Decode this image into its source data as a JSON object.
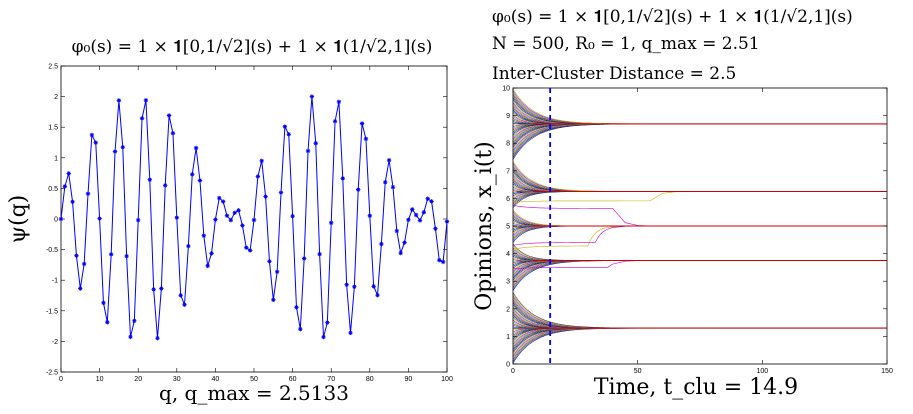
{
  "chart_data": [
    {
      "type": "line",
      "title": "φ₀(s) = 1 × 𝟏[0,1/√2](s) + 1 × 𝟏(1/√2,1](s)",
      "xlabel": "q, q_max = 2.5133",
      "ylabel": "ψ(q)",
      "xlim": [
        0,
        100
      ],
      "ylim": [
        -2.5,
        2.5
      ],
      "xticks": [
        "0",
        "10",
        "20",
        "30",
        "40",
        "50",
        "60",
        "70",
        "80",
        "90",
        "100"
      ],
      "yticks": [
        "2.5",
        "2",
        "1.5",
        "1",
        "0.5",
        "0",
        "-0.5",
        "-1",
        "-1.5",
        "-2",
        "-2.5"
      ],
      "grid": false,
      "color": "#0000ff",
      "marker": "star",
      "formula": {
        "carrier_cycles_per_unit": 0.14993,
        "envelope_cycles_per_unit": 0.01036,
        "amplitude": 2.0
      },
      "x_samples": "integers 0 to 100",
      "y_samples_note": "computed values, all 101 samples"
    },
    {
      "type": "line",
      "title_lines": [
        "φ₀(s) = 1 × 𝟏[0,1/√2](s) + 1 × 𝟏(1/√2,1](s)",
        "N = 500, R₀ = 1, q_max = 2.51",
        "Inter-Cluster Distance = 2.5"
      ],
      "xlabel": "Time, t_clu = 14.9",
      "ylabel": "Opinions, x_i(t)",
      "xlim": [
        0,
        150
      ],
      "ylim": [
        0,
        10
      ],
      "xticks": [
        "0",
        "50",
        "100",
        "150"
      ],
      "yticks": [
        "0",
        "1",
        "2",
        "3",
        "4",
        "5",
        "6",
        "7",
        "8",
        "9",
        "10"
      ],
      "grid": false,
      "n_agents": 500,
      "cluster_time": 14.9,
      "cluster_time_line": {
        "x": 14.9,
        "style": "dashed",
        "color": "#0000ff"
      },
      "clusters": [
        {
          "final_value": 1.3,
          "range": [
            0.0,
            2.6
          ]
        },
        {
          "final_value": 3.75,
          "range": [
            2.6,
            4.4
          ]
        },
        {
          "final_value": 5.0,
          "range": [
            4.4,
            5.6
          ]
        },
        {
          "final_value": 6.25,
          "range": [
            5.6,
            7.4
          ]
        },
        {
          "final_value": 8.7,
          "range": [
            7.4,
            10.0
          ]
        }
      ],
      "late_joiners": [
        {
          "start": 4.15,
          "target": 5.0,
          "join_time": 30,
          "color": "#c9b400"
        },
        {
          "start": 4.3,
          "target": 5.0,
          "join_time": 33,
          "color": "#cc00cc"
        },
        {
          "start": 5.85,
          "target": 6.25,
          "join_time": 55,
          "color": "#c9b400"
        },
        {
          "start": 5.75,
          "target": 5.0,
          "join_time": 40,
          "color": "#cc00cc"
        },
        {
          "start": 3.45,
          "target": 3.75,
          "join_time": 38,
          "color": "#cc00cc"
        }
      ],
      "series_colors": [
        "#0000ff",
        "#008000",
        "#ff0000",
        "#00bfbf",
        "#bf00bf",
        "#bfbf00",
        "#333333"
      ]
    }
  ]
}
